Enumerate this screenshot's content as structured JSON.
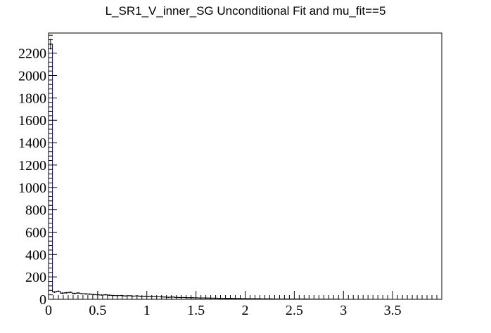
{
  "chart_data": {
    "type": "bar",
    "title": "L_SR1_V_inner_SG Unconditional Fit and mu_fit==5",
    "xlabel": "",
    "ylabel": "",
    "xlim": [
      0,
      4
    ],
    "ylim": [
      0,
      2380
    ],
    "bin_width": 0.04,
    "x_ticks": [
      0,
      0.5,
      1,
      1.5,
      2,
      2.5,
      3,
      3.5
    ],
    "x_tick_labels": [
      "0",
      "0.5",
      "1",
      "1.5",
      "2",
      "2.5",
      "3",
      "3.5"
    ],
    "y_ticks": [
      0,
      200,
      400,
      600,
      800,
      1000,
      1200,
      1400,
      1600,
      1800,
      2000,
      2200
    ],
    "y_tick_labels": [
      "0",
      "200",
      "400",
      "600",
      "800",
      "1000",
      "1200",
      "1400",
      "1600",
      "1800",
      "2000",
      "2200"
    ],
    "grid": false,
    "legend": "none",
    "colors": {
      "histogram_line": "#000080",
      "data_marks": "#000000",
      "frame": "#000000"
    },
    "series": [
      {
        "style": "histogram",
        "values": [
          2280,
          65,
          72,
          55,
          58,
          62,
          52,
          56,
          50,
          48,
          46,
          42,
          40,
          38,
          40,
          36,
          34,
          33,
          34,
          30,
          32,
          28,
          30,
          26,
          27,
          24,
          25,
          22,
          22,
          20,
          18,
          20,
          17,
          16,
          16,
          14,
          14,
          13,
          12,
          12,
          11,
          10,
          10,
          9,
          9,
          8,
          8,
          7,
          7,
          6,
          6,
          5,
          5,
          5,
          4,
          4,
          4,
          3,
          3,
          3,
          3,
          2,
          2,
          2,
          2,
          2,
          1,
          1,
          1,
          1,
          1,
          1,
          1,
          1,
          0,
          0,
          0,
          0,
          0,
          0,
          0,
          0,
          0,
          0,
          0,
          0,
          0,
          0,
          0,
          0,
          0,
          0,
          0,
          0,
          0,
          0,
          0,
          0,
          0,
          0
        ]
      },
      {
        "style": "points-with-error-bars",
        "values": [
          2280,
          65,
          72,
          55,
          58,
          62,
          52,
          56,
          50,
          48,
          46,
          42,
          40,
          38,
          40,
          36,
          34,
          33,
          34,
          30,
          32,
          28,
          30,
          26,
          27,
          24,
          25,
          22,
          22,
          20,
          18,
          20,
          17,
          16,
          16,
          14,
          14,
          13,
          12,
          12,
          11,
          10,
          10,
          9,
          9,
          8,
          8,
          7,
          7,
          6,
          6,
          5,
          5,
          5,
          4,
          4,
          4,
          3,
          3,
          3,
          3,
          2,
          2,
          2,
          2,
          2,
          1,
          1,
          1,
          1,
          1,
          1,
          1,
          1,
          0,
          0,
          0,
          0,
          0,
          0,
          0,
          0,
          0,
          0,
          0,
          0,
          0,
          0,
          0,
          0,
          0,
          0,
          0,
          0,
          0,
          0,
          0,
          0,
          0,
          0
        ]
      }
    ]
  }
}
